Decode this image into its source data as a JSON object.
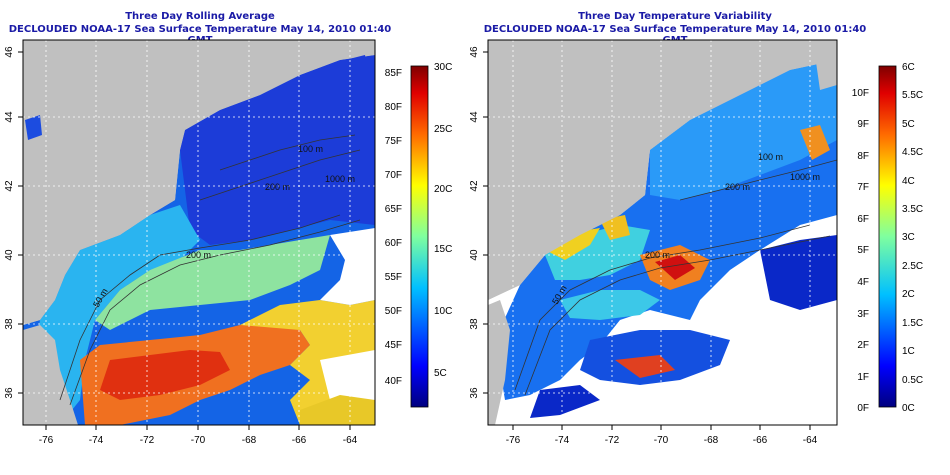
{
  "panels": [
    {
      "title": "Three Day Rolling Average",
      "subtitle": "DECLOUDED NOAA-17 Sea Surface Temperature May 14, 2010 01:40 GMT",
      "contour_labels": [
        "100 m",
        "200 m",
        "1000 m",
        "200 m",
        "50 m"
      ],
      "colorbar": {
        "celsius": [
          "30C",
          "25C",
          "20C",
          "15C",
          "10C",
          "5C"
        ],
        "fahrenheit": [
          "85F",
          "80F",
          "75F",
          "70F",
          "65F",
          "60F",
          "55F",
          "50F",
          "45F",
          "40F"
        ]
      }
    },
    {
      "title": "Three Day Temperature Variability",
      "subtitle": "DECLOUDED NOAA-17 Sea Surface Temperature May 14, 2010 01:40 GMT",
      "contour_labels": [
        "100 m",
        "200 m",
        "1000 m",
        "200 m",
        "50 m"
      ],
      "colorbar": {
        "celsius": [
          "6C",
          "5.5C",
          "5C",
          "4.5C",
          "4C",
          "3.5C",
          "3C",
          "2.5C",
          "2C",
          "1.5C",
          "1C",
          "0.5C",
          "0C"
        ],
        "fahrenheit": [
          "10F",
          "9F",
          "8F",
          "7F",
          "6F",
          "5F",
          "4F",
          "3F",
          "2F",
          "1F",
          "0F"
        ]
      }
    }
  ],
  "axes": {
    "lat_ticks": [
      "46",
      "44",
      "42",
      "40",
      "38",
      "36"
    ],
    "lon_ticks": [
      "-76",
      "-74",
      "-72",
      "-70",
      "-68",
      "-66",
      "-64"
    ]
  },
  "colors": {
    "land": "#c0c0c0",
    "title": "#1a1aa6",
    "sst_scale": [
      "#00007f",
      "#0000ff",
      "#007fff",
      "#00ffff",
      "#7fff7f",
      "#ffff00",
      "#ff7f00",
      "#ff0000",
      "#7f0000"
    ]
  }
}
